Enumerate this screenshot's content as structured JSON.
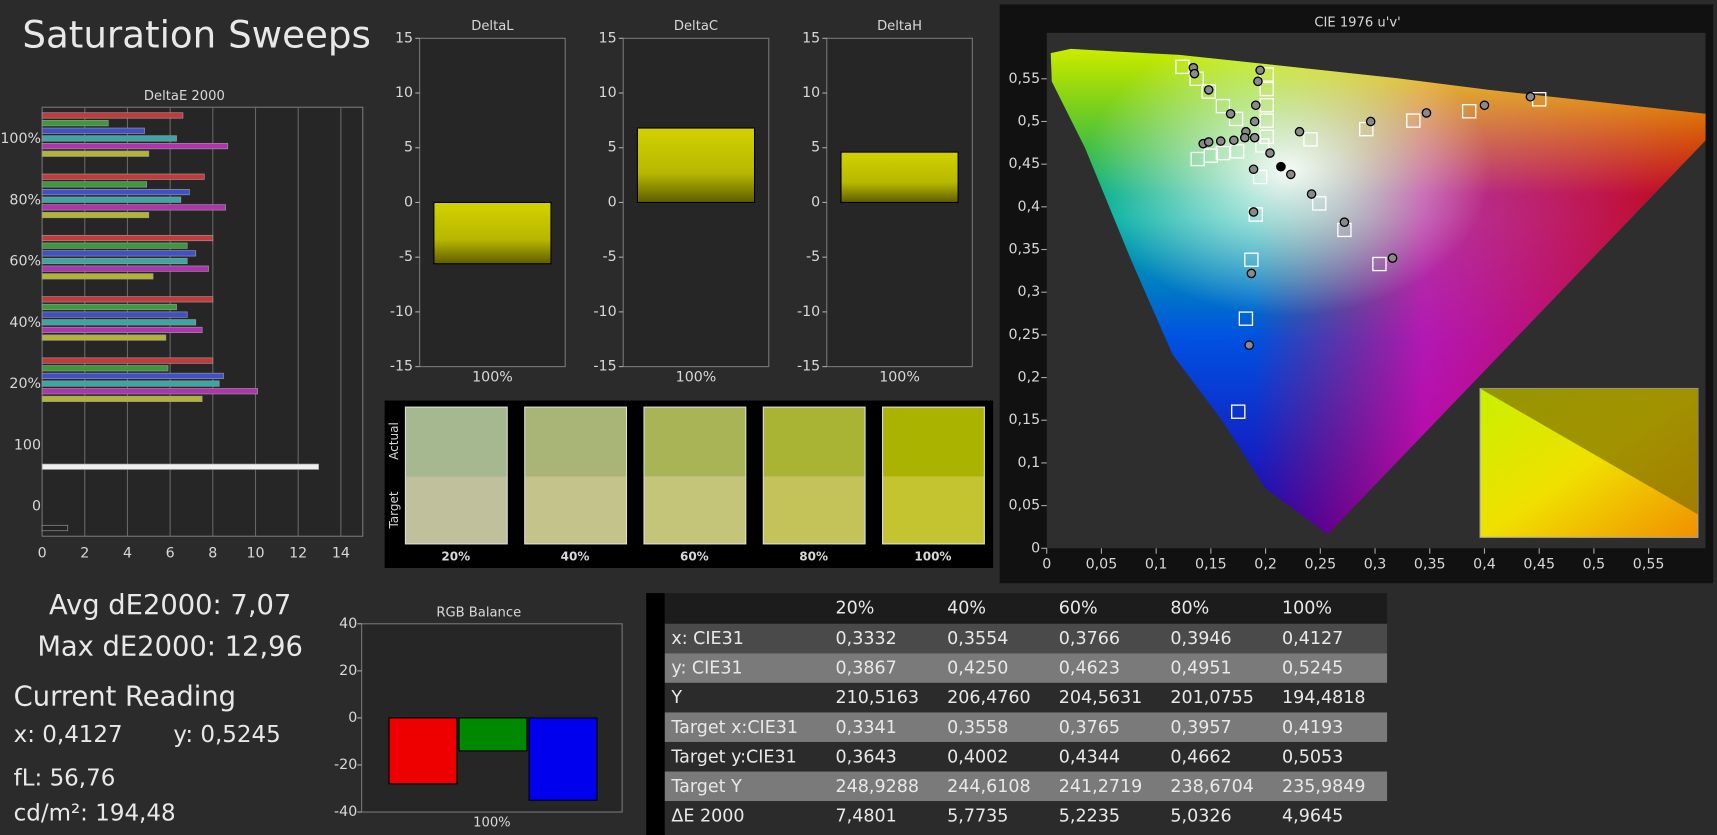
{
  "title": "Saturation Sweeps",
  "summary": {
    "avg": "Avg dE2000: 7,07",
    "max": "Max dE2000: 12,96"
  },
  "current_reading": {
    "title": "Current Reading",
    "x": "x: 0,4127",
    "y": "y: 0,5245",
    "fl": "fL: 56,76",
    "luminance": "cd/m²: 194,48"
  },
  "swatches": {
    "row_labels": [
      "Actual",
      "Target"
    ],
    "items": [
      {
        "label": "20%",
        "actual": "#a6b890",
        "target": "#c0c09c"
      },
      {
        "label": "40%",
        "actual": "#a8b576",
        "target": "#c3c38b"
      },
      {
        "label": "60%",
        "actual": "#a8b456",
        "target": "#c5c57a"
      },
      {
        "label": "80%",
        "actual": "#aab434",
        "target": "#c3c35a"
      },
      {
        "label": "100%",
        "actual": "#a9b300",
        "target": "#c4c430"
      }
    ]
  },
  "table": {
    "columns": [
      "20%",
      "40%",
      "60%",
      "80%",
      "100%"
    ],
    "rows": [
      {
        "label": "x: CIE31",
        "cells": [
          "0,3332",
          "0,3554",
          "0,3766",
          "0,3946",
          "0,4127"
        ]
      },
      {
        "label": "y: CIE31",
        "cells": [
          "0,3867",
          "0,4250",
          "0,4623",
          "0,4951",
          "0,5245"
        ]
      },
      {
        "label": "Y",
        "cells": [
          "210,5163",
          "206,4760",
          "204,5631",
          "201,0755",
          "194,4818"
        ]
      },
      {
        "label": "Target x:CIE31",
        "cells": [
          "0,3341",
          "0,3558",
          "0,3765",
          "0,3957",
          "0,4193"
        ]
      },
      {
        "label": "Target y:CIE31",
        "cells": [
          "0,3643",
          "0,4002",
          "0,4344",
          "0,4662",
          "0,5053"
        ]
      },
      {
        "label": "Target Y",
        "cells": [
          "248,9288",
          "244,6108",
          "241,2719",
          "238,6704",
          "235,9849"
        ]
      },
      {
        "label": "ΔE 2000",
        "cells": [
          "7,4801",
          "5,7735",
          "5,2235",
          "5,0326",
          "4,9645"
        ]
      }
    ]
  },
  "chart_data": [
    {
      "type": "hbar",
      "title": "DeltaE 2000",
      "categories": [
        "100%",
        "80%",
        "60%",
        "40%",
        "20%",
        "100",
        "0"
      ],
      "series": [
        {
          "color": "#c43a3a",
          "values": [
            6.6,
            7.6,
            8.0,
            8.0,
            8.0,
            null,
            null
          ]
        },
        {
          "color": "#3c9a3c",
          "values": [
            3.1,
            4.9,
            6.8,
            6.3,
            5.9,
            null,
            null
          ]
        },
        {
          "color": "#4050c8",
          "values": [
            4.8,
            6.9,
            7.2,
            6.8,
            8.5,
            null,
            null
          ]
        },
        {
          "color": "#3aa6a6",
          "values": [
            6.3,
            6.5,
            6.8,
            7.2,
            8.3,
            null,
            null
          ]
        },
        {
          "color": "#b034b0",
          "values": [
            8.7,
            8.6,
            7.8,
            7.5,
            10.1,
            null,
            null
          ]
        },
        {
          "color": "#b4b434",
          "values": [
            5.0,
            5.0,
            5.2,
            5.8,
            7.5,
            null,
            null
          ]
        },
        {
          "color": "#f0f0f0",
          "values": [
            null,
            null,
            null,
            null,
            null,
            12.96,
            null
          ]
        },
        {
          "color": "#222222",
          "values": [
            null,
            null,
            null,
            null,
            null,
            null,
            1.2
          ]
        }
      ],
      "xlim": [
        0,
        15
      ],
      "xticks": [
        0,
        2,
        4,
        6,
        8,
        10,
        12,
        14
      ],
      "grid": true
    },
    {
      "type": "bar",
      "title": "DeltaL",
      "categories": [
        "100%"
      ],
      "values": [
        -5.6
      ],
      "color": "#c8c800",
      "ylim": [
        -15,
        15
      ],
      "yticks": [
        -15,
        -10,
        -5,
        0,
        5,
        10,
        15
      ]
    },
    {
      "type": "bar",
      "title": "DeltaC",
      "categories": [
        "100%"
      ],
      "values": [
        6.8
      ],
      "color": "#c8c800",
      "ylim": [
        -15,
        15
      ],
      "yticks": [
        -15,
        -10,
        -5,
        0,
        5,
        10,
        15
      ]
    },
    {
      "type": "bar",
      "title": "DeltaH",
      "categories": [
        "100%"
      ],
      "values": [
        4.6
      ],
      "color": "#c8c800",
      "ylim": [
        -15,
        15
      ],
      "yticks": [
        -15,
        -10,
        -5,
        0,
        5,
        10,
        15
      ]
    },
    {
      "type": "groupbar",
      "title": "RGB Balance",
      "categories": [
        "100%"
      ],
      "series": [
        {
          "color": "#ee0000",
          "values": [
            -28
          ]
        },
        {
          "color": "#008800",
          "values": [
            -14
          ]
        },
        {
          "color": "#0000ee",
          "values": [
            -35
          ]
        }
      ],
      "ylim": [
        -40,
        40
      ],
      "yticks": [
        -40,
        -20,
        0,
        20,
        40
      ]
    },
    {
      "type": "scatter",
      "title": "CIE 1976 u'v'",
      "series": [
        {
          "color": "#ffffff",
          "marker": "square",
          "x": [
            0.197,
            0.241,
            0.292,
            0.335,
            0.386,
            0.45,
            0.124,
            0.137,
            0.148,
            0.161,
            0.173,
            0.138,
            0.15,
            0.161,
            0.174,
            0.195,
            0.191,
            0.187,
            0.182,
            0.175,
            0.249,
            0.272,
            0.304,
            0.201,
            0.201,
            0.201,
            0.201,
            0.201
          ],
          "values": [
            0.472,
            0.479,
            0.491,
            0.501,
            0.512,
            0.526,
            0.564,
            0.55,
            0.535,
            0.518,
            0.503,
            0.456,
            0.46,
            0.463,
            0.465,
            0.435,
            0.391,
            0.338,
            0.269,
            0.16,
            0.404,
            0.373,
            0.333,
            0.555,
            0.538,
            0.519,
            0.501,
            0.482
          ]
        },
        {
          "color": "#8a8a8a",
          "marker": "circle",
          "x": [
            0.231,
            0.296,
            0.347,
            0.4,
            0.442,
            0.134,
            0.135,
            0.148,
            0.168,
            0.182,
            0.143,
            0.148,
            0.159,
            0.171,
            0.181,
            0.195,
            0.193,
            0.191,
            0.19,
            0.19,
            0.189,
            0.189,
            0.187,
            0.185,
            0.204,
            0.223,
            0.242,
            0.272,
            0.316
          ],
          "values": [
            0.488,
            0.5,
            0.51,
            0.519,
            0.529,
            0.563,
            0.556,
            0.537,
            0.509,
            0.488,
            0.474,
            0.476,
            0.477,
            0.478,
            0.481,
            0.56,
            0.547,
            0.519,
            0.5,
            0.481,
            0.444,
            0.394,
            0.322,
            0.238,
            0.463,
            0.438,
            0.415,
            0.382,
            0.34
          ]
        },
        {
          "color": "#000000",
          "marker": "circle",
          "x": [
            0.214
          ],
          "values": [
            0.447
          ]
        }
      ],
      "xlim": [
        0,
        0.6
      ],
      "xticks": [
        0,
        {
          "value": 0.05,
          "label": "0,05"
        },
        {
          "value": 0.1,
          "label": "0,1"
        },
        {
          "value": 0.15,
          "label": "0,15"
        },
        {
          "value": 0.2,
          "label": "0,2"
        },
        {
          "value": 0.25,
          "label": "0,25"
        },
        {
          "value": 0.3,
          "label": "0,3"
        },
        {
          "value": 0.35,
          "label": "0,35"
        },
        {
          "value": 0.4,
          "label": "0,4"
        },
        {
          "value": 0.45,
          "label": "0,45"
        },
        {
          "value": 0.5,
          "label": "0,5"
        },
        {
          "value": 0.55,
          "label": "0,55"
        }
      ],
      "ylim": [
        0,
        0.6
      ],
      "yticks": [
        0,
        {
          "value": 0.05,
          "label": "0,05"
        },
        {
          "value": 0.1,
          "label": "0,1"
        },
        {
          "value": 0.15,
          "label": "0,15"
        },
        {
          "value": 0.2,
          "label": "0,2"
        },
        {
          "value": 0.25,
          "label": "0,25"
        },
        {
          "value": 0.3,
          "label": "0,3"
        },
        {
          "value": 0.35,
          "label": "0,35"
        },
        {
          "value": 0.4,
          "label": "0,4"
        },
        {
          "value": 0.45,
          "label": "0,45"
        },
        {
          "value": 0.5,
          "label": "0,5"
        },
        {
          "value": 0.55,
          "label": "0,55"
        }
      ]
    }
  ]
}
